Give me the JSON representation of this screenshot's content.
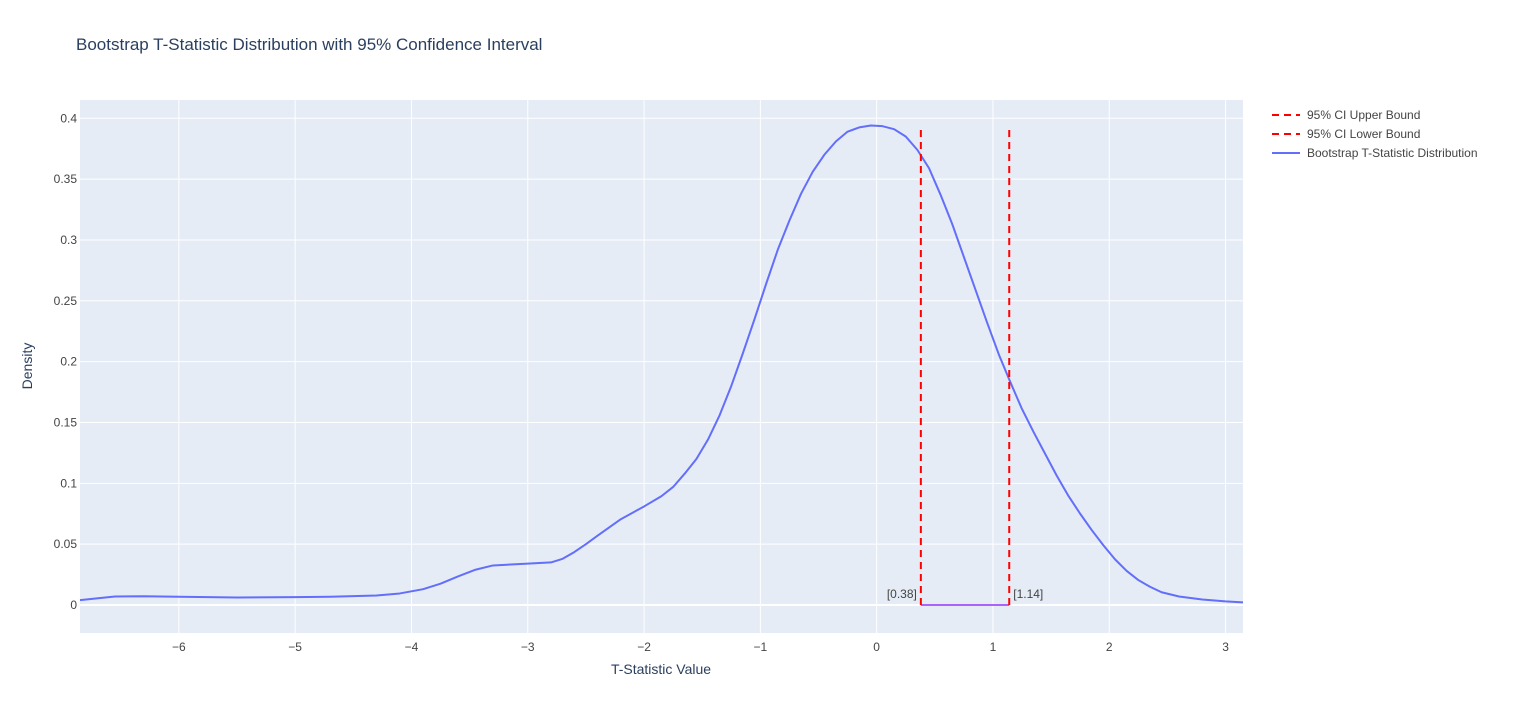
{
  "chart_data": {
    "type": "line",
    "title": "Bootstrap T-Statistic Distribution with 95% Confidence Interval",
    "xlabel": "T-Statistic Value",
    "ylabel": "Density",
    "xlim": [
      -6.85,
      3.15
    ],
    "ylim": [
      -0.023,
      0.415
    ],
    "x_ticks": [
      -6,
      -5,
      -4,
      -3,
      -2,
      -1,
      0,
      1,
      2,
      3
    ],
    "x_tick_labels": [
      "−6",
      "−5",
      "−4",
      "−3",
      "−2",
      "−1",
      "0",
      "1",
      "2",
      "3"
    ],
    "y_ticks": [
      0,
      0.05,
      0.1,
      0.15,
      0.2,
      0.25,
      0.3,
      0.35,
      0.4
    ],
    "y_tick_labels": [
      "0",
      "0.05",
      "0.1",
      "0.15",
      "0.2",
      "0.25",
      "0.3",
      "0.35",
      "0.4"
    ],
    "grid": true,
    "legend_position": "top-right, outside plot",
    "series": [
      {
        "name": "Bootstrap T-Statistic Distribution",
        "color": "#636efa",
        "dash": "solid",
        "x": [
          -6.85,
          -6.55,
          -6.3,
          -6.0,
          -5.5,
          -5.0,
          -4.7,
          -4.3,
          -4.1,
          -3.9,
          -3.75,
          -3.6,
          -3.45,
          -3.3,
          -3.2,
          -3.0,
          -2.8,
          -2.7,
          -2.6,
          -2.5,
          -2.4,
          -2.2,
          -2.0,
          -1.85,
          -1.75,
          -1.65,
          -1.55,
          -1.45,
          -1.35,
          -1.25,
          -1.15,
          -1.05,
          -0.95,
          -0.85,
          -0.75,
          -0.65,
          -0.55,
          -0.45,
          -0.35,
          -0.25,
          -0.15,
          -0.05,
          0.05,
          0.15,
          0.25,
          0.35,
          0.45,
          0.55,
          0.65,
          0.75,
          0.85,
          0.95,
          1.05,
          1.15,
          1.25,
          1.35,
          1.45,
          1.55,
          1.65,
          1.75,
          1.85,
          1.95,
          2.05,
          2.15,
          2.25,
          2.35,
          2.45,
          2.6,
          2.8,
          3.0,
          3.15
        ],
        "y": [
          0.004,
          0.007,
          0.0072,
          0.0068,
          0.0062,
          0.0065,
          0.0068,
          0.0078,
          0.0095,
          0.013,
          0.0175,
          0.0235,
          0.029,
          0.0325,
          0.033,
          0.034,
          0.035,
          0.038,
          0.0435,
          0.05,
          0.057,
          0.0705,
          0.081,
          0.0895,
          0.097,
          0.108,
          0.12,
          0.136,
          0.156,
          0.18,
          0.207,
          0.235,
          0.264,
          0.292,
          0.316,
          0.338,
          0.356,
          0.37,
          0.381,
          0.389,
          0.3925,
          0.394,
          0.3935,
          0.391,
          0.385,
          0.374,
          0.359,
          0.337,
          0.313,
          0.286,
          0.259,
          0.232,
          0.206,
          0.183,
          0.161,
          0.142,
          0.124,
          0.106,
          0.0895,
          0.075,
          0.0615,
          0.049,
          0.0375,
          0.028,
          0.0205,
          0.015,
          0.0105,
          0.007,
          0.0045,
          0.003,
          0.0022
        ]
      }
    ],
    "ci": {
      "lower": {
        "name": "95% CI Lower Bound",
        "x": 0.38,
        "label": "[0.38]",
        "color": "#ff0000",
        "y_top": 0.394
      },
      "upper": {
        "name": "95% CI Upper Bound",
        "x": 1.14,
        "label": "[1.14]",
        "color": "#ff0000",
        "y_top": 0.394
      },
      "interval_color": "#ab63fa"
    },
    "legend": [
      {
        "name": "95% CI Upper Bound",
        "color": "#ff0000",
        "dash": "dash"
      },
      {
        "name": "95% CI Lower Bound",
        "color": "#ff0000",
        "dash": "dash"
      },
      {
        "name": "Bootstrap T-Statistic Distribution",
        "color": "#636efa",
        "dash": "solid"
      }
    ],
    "colors": {
      "plot_bg": "#e5ecf6",
      "grid": "#ffffff",
      "text": "#444444",
      "title": "#2a3f5f"
    }
  }
}
